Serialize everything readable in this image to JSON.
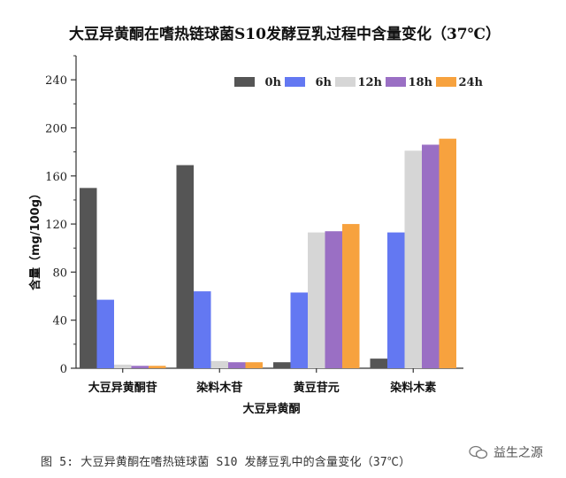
{
  "chart_data": {
    "type": "bar",
    "title": "大豆异黄酮在嗜热链球菌S10发酵豆乳过程中含量变化（37℃）",
    "xlabel": "大豆异黄酮",
    "ylabel": "含量（mg/100g）",
    "ylim": [
      0,
      260
    ],
    "yticks": [
      0,
      40,
      80,
      120,
      160,
      200,
      240
    ],
    "categories": [
      "大豆异黄酮苷",
      "染料木苷",
      "黄豆苷元",
      "染料木素"
    ],
    "series": [
      {
        "name": "0h",
        "color": "#555555",
        "values": [
          150,
          169,
          5,
          8
        ]
      },
      {
        "name": "6h",
        "color": "#6378f2",
        "values": [
          57,
          64,
          63,
          113
        ]
      },
      {
        "name": "12h",
        "color": "#d6d6d6",
        "values": [
          3,
          6,
          113,
          181
        ]
      },
      {
        "name": "18h",
        "color": "#9a6fc4",
        "values": [
          2,
          5,
          114,
          186
        ]
      },
      {
        "name": "24h",
        "color": "#f7a23e",
        "values": [
          2,
          5,
          120,
          191
        ]
      }
    ],
    "legend_position": "top-right"
  },
  "caption": "图 5: 大豆异黄酮在嗜热链球菌 S10 发酵豆乳中的含量变化（37℃）",
  "watermark": {
    "text": "益生之源",
    "icon": "wechat-bubbles-icon"
  }
}
